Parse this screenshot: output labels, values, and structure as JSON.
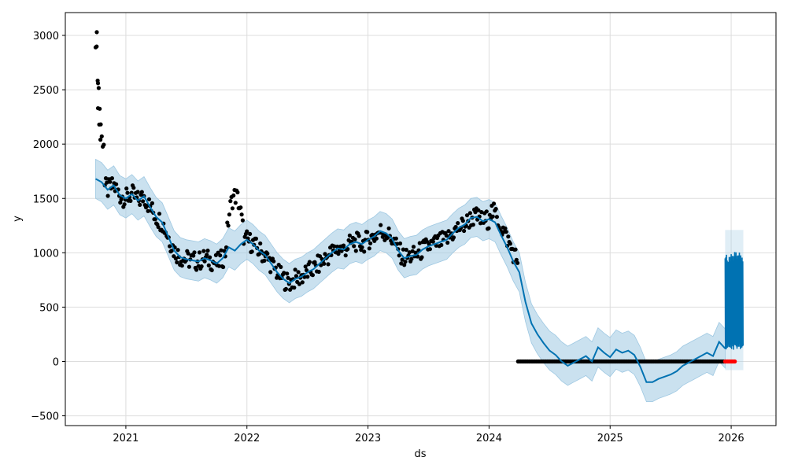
{
  "chart_data": {
    "type": "line",
    "title": "",
    "xlabel": "ds",
    "ylabel": "y",
    "x_ticks": [
      "2021",
      "2022",
      "2023",
      "2024",
      "2025",
      "2026"
    ],
    "x_tick_values": [
      2021,
      2022,
      2023,
      2024,
      2025,
      2026
    ],
    "y_ticks": [
      "−500",
      "0",
      "500",
      "1000",
      "1500",
      "2000",
      "2500",
      "3000"
    ],
    "y_tick_values": [
      -500,
      0,
      500,
      1000,
      1500,
      2000,
      2500,
      3000
    ],
    "xlim": [
      2020.5,
      2026.37
    ],
    "ylim": [
      -590,
      3210
    ],
    "grid": true,
    "colors": {
      "observed": "#000000",
      "forecast": "#0072B2",
      "interval": "#A6CDE5",
      "highlight": "#FF0000"
    },
    "series": [
      {
        "role": "forecast",
        "points": [
          [
            2020.75,
            1680
          ],
          [
            2020.8,
            1650
          ],
          [
            2020.85,
            1580
          ],
          [
            2020.9,
            1620
          ],
          [
            2020.95,
            1530
          ],
          [
            2021.0,
            1500
          ],
          [
            2021.05,
            1540
          ],
          [
            2021.1,
            1480
          ],
          [
            2021.15,
            1520
          ],
          [
            2021.2,
            1420
          ],
          [
            2021.25,
            1330
          ],
          [
            2021.3,
            1280
          ],
          [
            2021.35,
            1150
          ],
          [
            2021.4,
            1020
          ],
          [
            2021.45,
            960
          ],
          [
            2021.5,
            940
          ],
          [
            2021.55,
            930
          ],
          [
            2021.6,
            920
          ],
          [
            2021.65,
            950
          ],
          [
            2021.7,
            930
          ],
          [
            2021.75,
            900
          ],
          [
            2021.8,
            950
          ],
          [
            2021.85,
            1050
          ],
          [
            2021.9,
            1020
          ],
          [
            2021.95,
            1080
          ],
          [
            2022.0,
            1120
          ],
          [
            2022.05,
            1080
          ],
          [
            2022.1,
            1020
          ],
          [
            2022.15,
            980
          ],
          [
            2022.2,
            900
          ],
          [
            2022.25,
            820
          ],
          [
            2022.3,
            760
          ],
          [
            2022.35,
            720
          ],
          [
            2022.4,
            760
          ],
          [
            2022.45,
            780
          ],
          [
            2022.5,
            820
          ],
          [
            2022.55,
            850
          ],
          [
            2022.6,
            900
          ],
          [
            2022.65,
            950
          ],
          [
            2022.7,
            1000
          ],
          [
            2022.75,
            1040
          ],
          [
            2022.8,
            1030
          ],
          [
            2022.85,
            1080
          ],
          [
            2022.9,
            1100
          ],
          [
            2022.95,
            1080
          ],
          [
            2023.0,
            1120
          ],
          [
            2023.05,
            1150
          ],
          [
            2023.1,
            1200
          ],
          [
            2023.15,
            1180
          ],
          [
            2023.2,
            1130
          ],
          [
            2023.25,
            1020
          ],
          [
            2023.3,
            950
          ],
          [
            2023.35,
            970
          ],
          [
            2023.4,
            980
          ],
          [
            2023.45,
            1030
          ],
          [
            2023.5,
            1060
          ],
          [
            2023.55,
            1080
          ],
          [
            2023.6,
            1100
          ],
          [
            2023.65,
            1120
          ],
          [
            2023.7,
            1180
          ],
          [
            2023.75,
            1230
          ],
          [
            2023.8,
            1260
          ],
          [
            2023.85,
            1320
          ],
          [
            2023.9,
            1330
          ],
          [
            2023.95,
            1290
          ],
          [
            2024.0,
            1310
          ],
          [
            2024.05,
            1280
          ],
          [
            2024.1,
            1160
          ],
          [
            2024.15,
            1050
          ],
          [
            2024.2,
            920
          ],
          [
            2024.25,
            820
          ],
          [
            2024.3,
            550
          ],
          [
            2024.35,
            350
          ],
          [
            2024.4,
            250
          ],
          [
            2024.45,
            170
          ],
          [
            2024.5,
            100
          ],
          [
            2024.55,
            60
          ],
          [
            2024.6,
            0
          ],
          [
            2024.65,
            -40
          ],
          [
            2024.7,
            -10
          ],
          [
            2024.75,
            20
          ],
          [
            2024.8,
            50
          ],
          [
            2024.85,
            0
          ],
          [
            2024.9,
            130
          ],
          [
            2024.95,
            80
          ],
          [
            2025.0,
            40
          ],
          [
            2025.05,
            110
          ],
          [
            2025.1,
            80
          ],
          [
            2025.15,
            100
          ],
          [
            2025.2,
            60
          ],
          [
            2025.25,
            -50
          ],
          [
            2025.3,
            -190
          ],
          [
            2025.35,
            -190
          ],
          [
            2025.4,
            -160
          ],
          [
            2025.45,
            -140
          ],
          [
            2025.5,
            -120
          ],
          [
            2025.55,
            -90
          ],
          [
            2025.6,
            -40
          ],
          [
            2025.65,
            -10
          ],
          [
            2025.7,
            20
          ],
          [
            2025.75,
            50
          ],
          [
            2025.8,
            80
          ],
          [
            2025.85,
            50
          ],
          [
            2025.9,
            180
          ],
          [
            2025.95,
            120
          ]
        ]
      }
    ],
    "interval_halfwidth": 180,
    "observed_segments": [
      {
        "x_start": 2020.75,
        "x_end": 2024.24,
        "note": "historical observed values"
      },
      {
        "x_start": 2024.24,
        "x_end": 2025.95,
        "value": 0
      },
      {
        "x_start": 2025.95,
        "x_end": 2026.03,
        "value": 0,
        "highlight": true
      }
    ],
    "forecast_spikes": {
      "x_start": 2025.95,
      "x_end": 2026.1,
      "low": 100,
      "high": 1010
    }
  }
}
